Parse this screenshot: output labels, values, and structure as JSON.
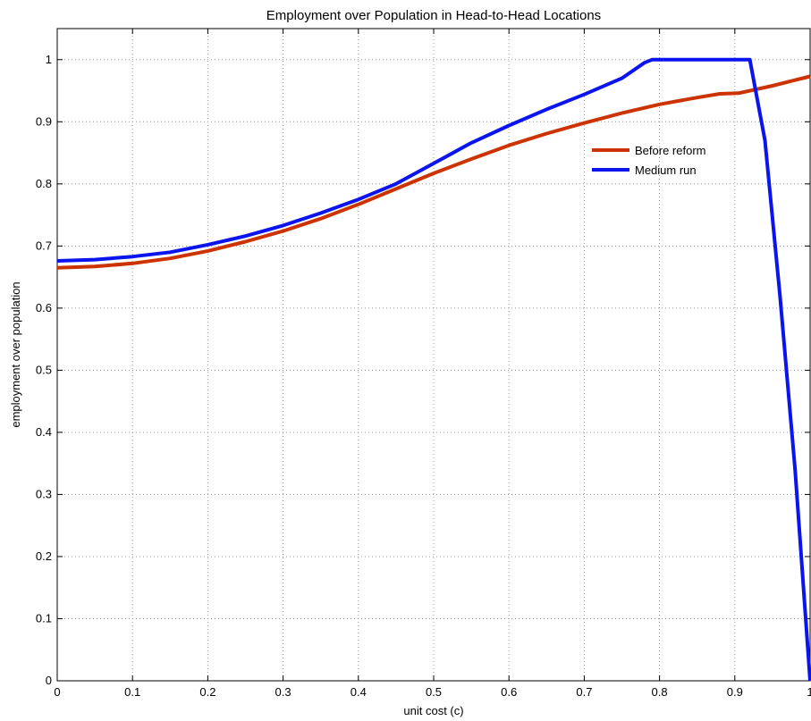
{
  "chart_data": {
    "type": "line",
    "title": "Employment over Population in Head-to-Head Locations",
    "xlabel": "unit cost (c)",
    "ylabel": "employment over population",
    "xlim": [
      0,
      1
    ],
    "ylim": [
      0,
      1.05
    ],
    "x_ticks": [
      "0",
      "0.1",
      "0.2",
      "0.3",
      "0.4",
      "0.5",
      "0.6",
      "0.7",
      "0.8",
      "0.9",
      "1"
    ],
    "y_ticks": [
      "0",
      "0.1",
      "0.2",
      "0.3",
      "0.4",
      "0.5",
      "0.6",
      "0.7",
      "0.8",
      "0.9",
      "1"
    ],
    "grid": true,
    "legend_position": "inside-right",
    "series": [
      {
        "name": "Before reform",
        "color": "#cc3300",
        "x": [
          0,
          0.05,
          0.1,
          0.15,
          0.2,
          0.25,
          0.3,
          0.35,
          0.4,
          0.45,
          0.5,
          0.55,
          0.6,
          0.65,
          0.7,
          0.75,
          0.8,
          0.85,
          0.88,
          0.905,
          0.95,
          1.0
        ],
        "y": [
          0.665,
          0.667,
          0.672,
          0.68,
          0.692,
          0.707,
          0.724,
          0.744,
          0.767,
          0.792,
          0.817,
          0.84,
          0.862,
          0.881,
          0.898,
          0.914,
          0.928,
          0.939,
          0.945,
          0.946,
          0.958,
          0.973
        ]
      },
      {
        "name": "Medium run",
        "color": "#0a14ee",
        "x": [
          0,
          0.05,
          0.1,
          0.15,
          0.2,
          0.25,
          0.3,
          0.35,
          0.4,
          0.45,
          0.5,
          0.55,
          0.6,
          0.65,
          0.7,
          0.75,
          0.78,
          0.79,
          0.85,
          0.9,
          0.92,
          0.94,
          0.96,
          0.98,
          1.0
        ],
        "y": [
          0.676,
          0.678,
          0.683,
          0.69,
          0.702,
          0.716,
          0.733,
          0.753,
          0.775,
          0.8,
          0.833,
          0.866,
          0.894,
          0.92,
          0.944,
          0.97,
          0.995,
          1.0,
          1.0,
          1.0,
          1.0,
          0.87,
          0.62,
          0.34,
          0.0
        ]
      }
    ]
  }
}
